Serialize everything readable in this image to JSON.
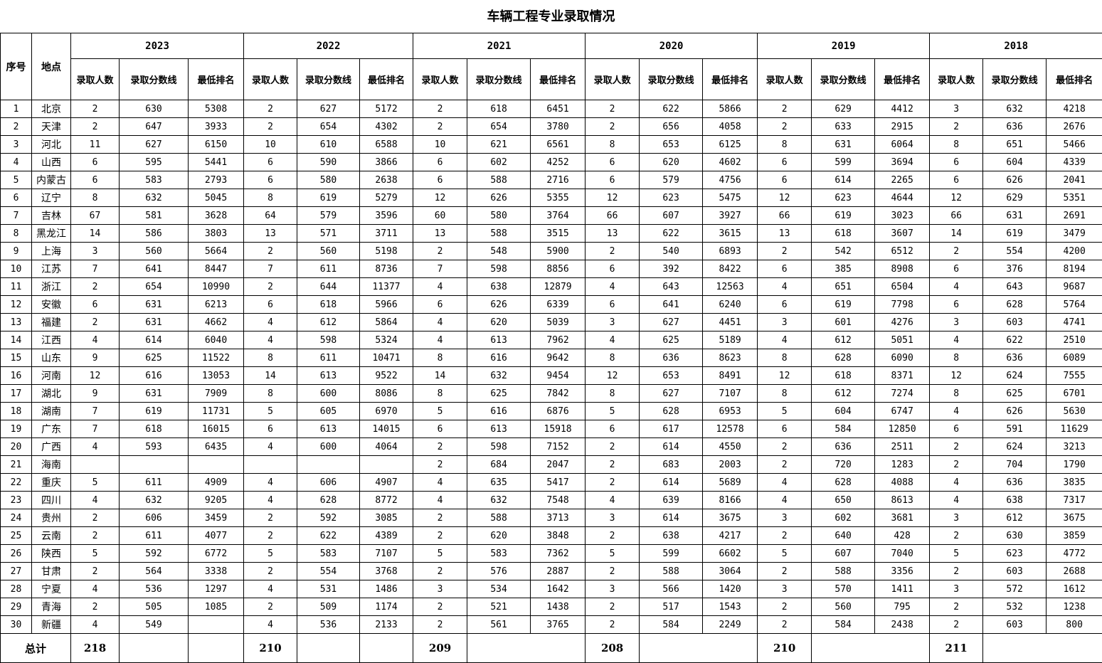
{
  "title": "车辆工程专业录取情况",
  "headers": {
    "no": "序号",
    "place": "地点",
    "years": [
      "2023",
      "2022",
      "2021",
      "2020",
      "2019",
      "2018"
    ],
    "sub": [
      "录取人数",
      "录取分数线",
      "最低排名"
    ],
    "total": "总计"
  },
  "rows": [
    [
      "1",
      "北京",
      "2",
      "630",
      "5308",
      "2",
      "627",
      "5172",
      "2",
      "618",
      "6451",
      "2",
      "622",
      "5866",
      "2",
      "629",
      "4412",
      "3",
      "632",
      "4218"
    ],
    [
      "2",
      "天津",
      "2",
      "647",
      "3933",
      "2",
      "654",
      "4302",
      "2",
      "654",
      "3780",
      "2",
      "656",
      "4058",
      "2",
      "633",
      "2915",
      "2",
      "636",
      "2676"
    ],
    [
      "3",
      "河北",
      "11",
      "627",
      "6150",
      "10",
      "610",
      "6588",
      "10",
      "621",
      "6561",
      "8",
      "653",
      "6125",
      "8",
      "631",
      "6064",
      "8",
      "651",
      "5466"
    ],
    [
      "4",
      "山西",
      "6",
      "595",
      "5441",
      "6",
      "590",
      "3866",
      "6",
      "602",
      "4252",
      "6",
      "620",
      "4602",
      "6",
      "599",
      "3694",
      "6",
      "604",
      "4339"
    ],
    [
      "5",
      "内蒙古",
      "6",
      "583",
      "2793",
      "6",
      "580",
      "2638",
      "6",
      "588",
      "2716",
      "6",
      "579",
      "4756",
      "6",
      "614",
      "2265",
      "6",
      "626",
      "2041"
    ],
    [
      "6",
      "辽宁",
      "8",
      "632",
      "5045",
      "8",
      "619",
      "5279",
      "12",
      "626",
      "5355",
      "12",
      "623",
      "5475",
      "12",
      "623",
      "4644",
      "12",
      "629",
      "5351"
    ],
    [
      "7",
      "吉林",
      "67",
      "581",
      "3628",
      "64",
      "579",
      "3596",
      "60",
      "580",
      "3764",
      "66",
      "607",
      "3927",
      "66",
      "619",
      "3023",
      "66",
      "631",
      "2691"
    ],
    [
      "8",
      "黑龙江",
      "14",
      "586",
      "3803",
      "13",
      "571",
      "3711",
      "13",
      "588",
      "3515",
      "13",
      "622",
      "3615",
      "13",
      "618",
      "3607",
      "14",
      "619",
      "3479"
    ],
    [
      "9",
      "上海",
      "3",
      "560",
      "5664",
      "2",
      "560",
      "5198",
      "2",
      "548",
      "5900",
      "2",
      "540",
      "6893",
      "2",
      "542",
      "6512",
      "2",
      "554",
      "4200"
    ],
    [
      "10",
      "江苏",
      "7",
      "641",
      "8447",
      "7",
      "611",
      "8736",
      "7",
      "598",
      "8856",
      "6",
      "392",
      "8422",
      "6",
      "385",
      "8908",
      "6",
      "376",
      "8194"
    ],
    [
      "11",
      "浙江",
      "2",
      "654",
      "10990",
      "2",
      "644",
      "11377",
      "4",
      "638",
      "12879",
      "4",
      "643",
      "12563",
      "4",
      "651",
      "6504",
      "4",
      "643",
      "9687"
    ],
    [
      "12",
      "安徽",
      "6",
      "631",
      "6213",
      "6",
      "618",
      "5966",
      "6",
      "626",
      "6339",
      "6",
      "641",
      "6240",
      "6",
      "619",
      "7798",
      "6",
      "628",
      "5764"
    ],
    [
      "13",
      "福建",
      "2",
      "631",
      "4662",
      "4",
      "612",
      "5864",
      "4",
      "620",
      "5039",
      "3",
      "627",
      "4451",
      "3",
      "601",
      "4276",
      "3",
      "603",
      "4741"
    ],
    [
      "14",
      "江西",
      "4",
      "614",
      "6040",
      "4",
      "598",
      "5324",
      "4",
      "613",
      "7962",
      "4",
      "625",
      "5189",
      "4",
      "612",
      "5051",
      "4",
      "622",
      "2510"
    ],
    [
      "15",
      "山东",
      "9",
      "625",
      "11522",
      "8",
      "611",
      "10471",
      "8",
      "616",
      "9642",
      "8",
      "636",
      "8623",
      "8",
      "628",
      "6090",
      "8",
      "636",
      "6089"
    ],
    [
      "16",
      "河南",
      "12",
      "616",
      "13053",
      "14",
      "613",
      "9522",
      "14",
      "632",
      "9454",
      "12",
      "653",
      "8491",
      "12",
      "618",
      "8371",
      "12",
      "624",
      "7555"
    ],
    [
      "17",
      "湖北",
      "9",
      "631",
      "7909",
      "8",
      "600",
      "8086",
      "8",
      "625",
      "7842",
      "8",
      "627",
      "7107",
      "8",
      "612",
      "7274",
      "8",
      "625",
      "6701"
    ],
    [
      "18",
      "湖南",
      "7",
      "619",
      "11731",
      "5",
      "605",
      "6970",
      "5",
      "616",
      "6876",
      "5",
      "628",
      "6953",
      "5",
      "604",
      "6747",
      "4",
      "626",
      "5630"
    ],
    [
      "19",
      "广东",
      "7",
      "618",
      "16015",
      "6",
      "613",
      "14015",
      "6",
      "613",
      "15918",
      "6",
      "617",
      "12578",
      "6",
      "584",
      "12850",
      "6",
      "591",
      "11629"
    ],
    [
      "20",
      "广西",
      "4",
      "593",
      "6435",
      "4",
      "600",
      "4064",
      "2",
      "598",
      "7152",
      "2",
      "614",
      "4550",
      "2",
      "636",
      "2511",
      "2",
      "624",
      "3213"
    ],
    [
      "21",
      "海南",
      "",
      "",
      "",
      "",
      "",
      "",
      "2",
      "684",
      "2047",
      "2",
      "683",
      "2003",
      "2",
      "720",
      "1283",
      "2",
      "704",
      "1790"
    ],
    [
      "22",
      "重庆",
      "5",
      "611",
      "4909",
      "4",
      "606",
      "4907",
      "4",
      "635",
      "5417",
      "2",
      "614",
      "5689",
      "4",
      "628",
      "4088",
      "4",
      "636",
      "3835"
    ],
    [
      "23",
      "四川",
      "4",
      "632",
      "9205",
      "4",
      "628",
      "8772",
      "4",
      "632",
      "7548",
      "4",
      "639",
      "8166",
      "4",
      "650",
      "8613",
      "4",
      "638",
      "7317"
    ],
    [
      "24",
      "贵州",
      "2",
      "606",
      "3459",
      "2",
      "592",
      "3085",
      "2",
      "588",
      "3713",
      "3",
      "614",
      "3675",
      "3",
      "602",
      "3681",
      "3",
      "612",
      "3675"
    ],
    [
      "25",
      "云南",
      "2",
      "611",
      "4077",
      "2",
      "622",
      "4389",
      "2",
      "620",
      "3848",
      "2",
      "638",
      "4217",
      "2",
      "640",
      "428",
      "2",
      "630",
      "3859"
    ],
    [
      "26",
      "陕西",
      "5",
      "592",
      "6772",
      "5",
      "583",
      "7107",
      "5",
      "583",
      "7362",
      "5",
      "599",
      "6602",
      "5",
      "607",
      "7040",
      "5",
      "623",
      "4772"
    ],
    [
      "27",
      "甘肃",
      "2",
      "564",
      "3338",
      "2",
      "554",
      "3768",
      "2",
      "576",
      "2887",
      "2",
      "588",
      "3064",
      "2",
      "588",
      "3356",
      "2",
      "603",
      "2688"
    ],
    [
      "28",
      "宁夏",
      "4",
      "536",
      "1297",
      "4",
      "531",
      "1486",
      "3",
      "534",
      "1642",
      "3",
      "566",
      "1420",
      "3",
      "570",
      "1411",
      "3",
      "572",
      "1612"
    ],
    [
      "29",
      "青海",
      "2",
      "505",
      "1085",
      "2",
      "509",
      "1174",
      "2",
      "521",
      "1438",
      "2",
      "517",
      "1543",
      "2",
      "560",
      "795",
      "2",
      "532",
      "1238"
    ],
    [
      "30",
      "新疆",
      "4",
      "549",
      "",
      "4",
      "536",
      "2133",
      "2",
      "561",
      "3765",
      "2",
      "584",
      "2249",
      "2",
      "584",
      "2438",
      "2",
      "603",
      "800"
    ]
  ],
  "totals": [
    "218",
    "210",
    "209",
    "208",
    "210",
    "211"
  ]
}
